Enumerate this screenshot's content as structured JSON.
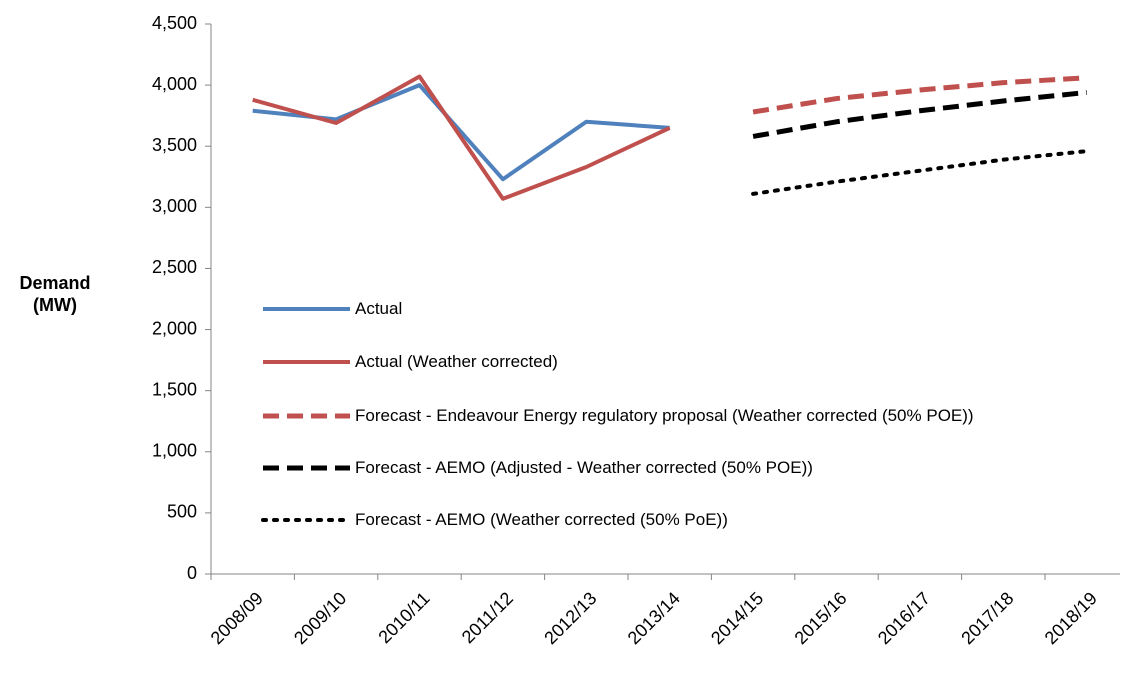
{
  "chart_data": {
    "type": "line",
    "y_label": "Demand (MW)",
    "categories": [
      "2008/09",
      "2009/10",
      "2010/11",
      "2011/12",
      "2012/13",
      "2013/14",
      "2014/15",
      "2015/16",
      "2016/17",
      "2017/18",
      "2018/19"
    ],
    "series": [
      {
        "name": "Actual",
        "color": "#4f81bd",
        "style": "solid",
        "values": [
          3790,
          3720,
          4000,
          3230,
          3700,
          3650,
          null,
          null,
          null,
          null,
          null
        ]
      },
      {
        "name": "Actual (Weather corrected)",
        "color": "#c0504d",
        "style": "solid",
        "values": [
          3880,
          3690,
          4070,
          3070,
          3330,
          3650,
          null,
          null,
          null,
          null,
          null
        ]
      },
      {
        "name": "Forecast - Endeavour Energy regulatory proposal (Weather corrected (50% POE))",
        "color": "#c0504d",
        "style": "dashed",
        "values": [
          null,
          null,
          null,
          null,
          null,
          null,
          3780,
          3890,
          3960,
          4020,
          4060
        ]
      },
      {
        "name": "Forecast - AEMO (Adjusted - Weather corrected (50% POE))",
        "color": "#000000",
        "style": "dashed",
        "values": [
          null,
          null,
          null,
          null,
          null,
          null,
          3580,
          3700,
          3790,
          3870,
          3940
        ]
      },
      {
        "name": "Forecast - AEMO (Weather corrected (50% PoE))",
        "color": "#000000",
        "style": "dotted",
        "values": [
          null,
          null,
          null,
          null,
          null,
          null,
          3110,
          3210,
          3300,
          3390,
          3460
        ]
      }
    ],
    "ylim": [
      0,
      4500
    ],
    "yticks": [
      0,
      500,
      {
        "value": 1000,
        "label": "1,000"
      },
      {
        "value": 1500,
        "label": "1,500"
      },
      {
        "value": 2000,
        "label": "2,000"
      },
      {
        "value": 2500,
        "label": "2,500"
      },
      {
        "value": 3000,
        "label": "3,000"
      },
      {
        "value": 3500,
        "label": "3,500"
      },
      {
        "value": 4000,
        "label": "4,000"
      },
      {
        "value": 4500,
        "label": "4,500"
      }
    ],
    "grid": false
  }
}
